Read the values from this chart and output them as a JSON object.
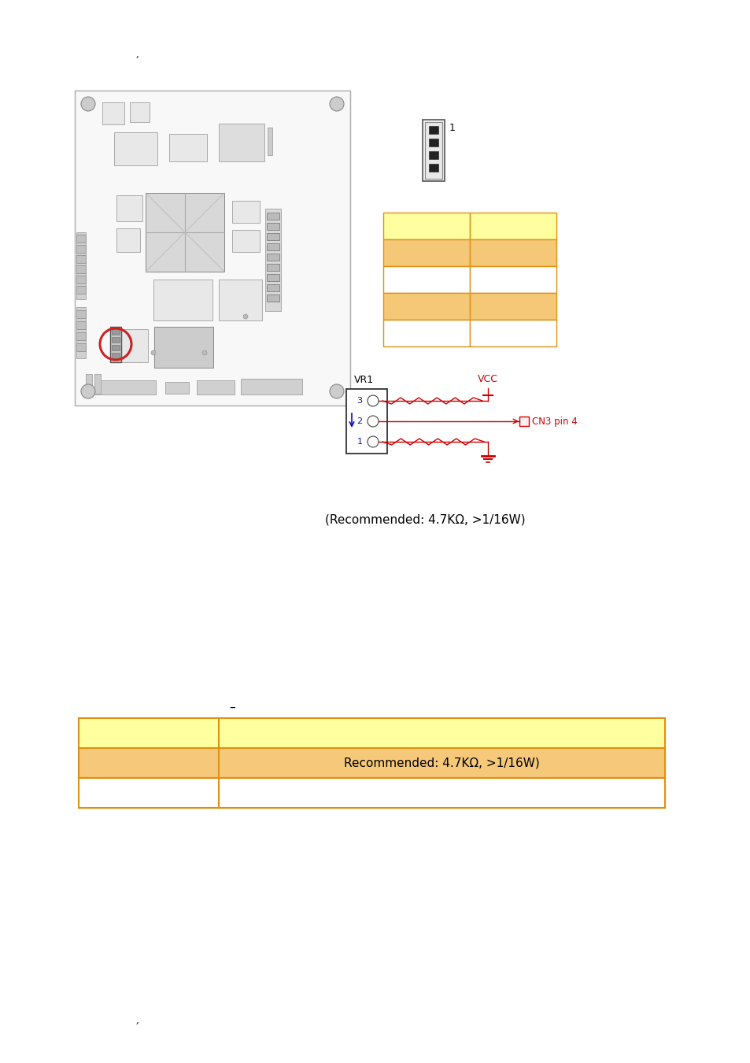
{
  "page_bg": "#ffffff",
  "top_marker": ",",
  "bottom_marker": ",",
  "recommended_text": "(Recommended: 4.7KΩ, >1/16W)",
  "table_header_row_color": "#ffffa0",
  "table_odd_row_color": "#f5c87a",
  "table_even_row_color": "#ffeebb",
  "table_border_color": "#e09010",
  "table2_recommended_text": "Recommended: 4.7KΩ, >1/16W)",
  "connector_grid_colors_row1": [
    "#ffffa0",
    "#ffffa0"
  ],
  "connector_grid_colors_row2": [
    "#f5c878",
    "#f5c878"
  ],
  "connector_grid_colors_row3": [
    "#ffffff",
    "#ffffff"
  ],
  "connector_grid_colors_row4": [
    "#f5c878",
    "#f5c878"
  ],
  "connector_grid_colors_row5": [
    "#ffffff",
    "#ffffff"
  ],
  "dash_text": "–",
  "vcc_text": "VCC",
  "vr1_text": "VR1",
  "cn3_pin4_text": "CN3 pin 4",
  "board_ec": "#aaaaaa",
  "board_fc": "#f8f8f8",
  "comp_ec": "#aaaaaa",
  "comp_fc": "#e8e8e8",
  "red_circle_color": "#cc2222",
  "grid_border_color": "#e09010",
  "schem_line_color": "#cc0000",
  "schem_text_color": "#cc0000",
  "schem_pin_label_color": "#1111aa",
  "schem_box_ec": "#333333",
  "gnd_color": "#cc0000"
}
